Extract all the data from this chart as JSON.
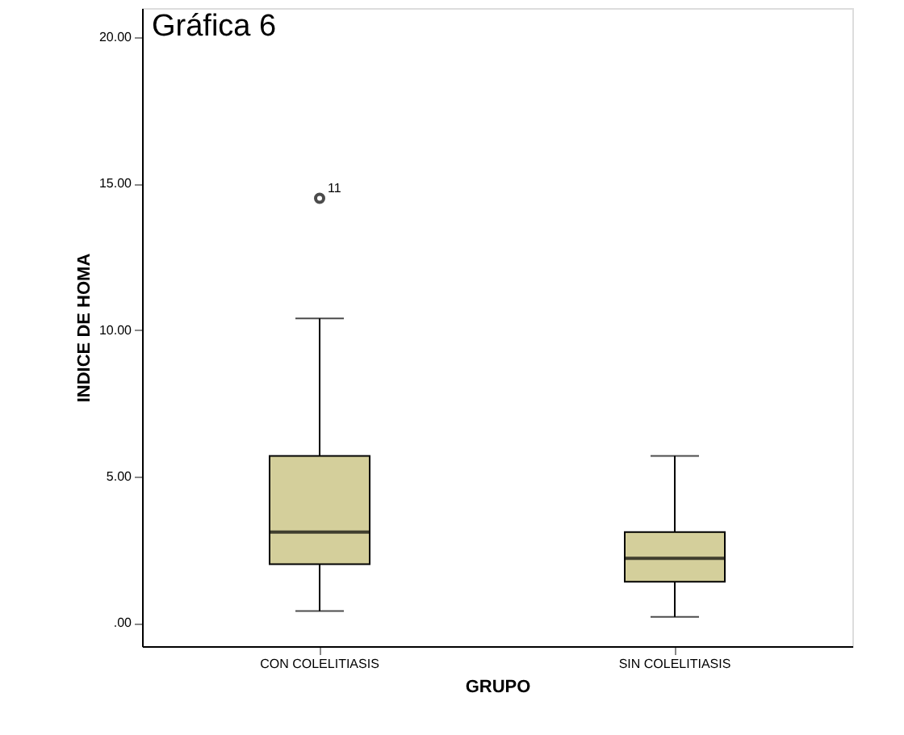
{
  "chart_data": {
    "type": "box",
    "title": "Gráfica 6",
    "xlabel": "GRUPO",
    "ylabel": "INDICE DE HOMA",
    "categories": [
      "CON COLELITIASIS",
      "SIN COLELITIASIS"
    ],
    "boxes": [
      {
        "low": 0.4,
        "q1": 2.0,
        "median": 3.1,
        "q3": 5.7,
        "high": 10.4,
        "outliers": [
          14.5
        ]
      },
      {
        "low": 0.2,
        "q1": 1.4,
        "median": 2.2,
        "q3": 3.1,
        "high": 5.7
      }
    ],
    "color": "#d4cf9b",
    "ylim": [
      -0.8,
      21
    ],
    "yticks": [
      {
        "value": 0,
        "label": ".00"
      },
      {
        "value": 5,
        "label": "5.00"
      },
      {
        "value": 10,
        "label": "10.00"
      },
      {
        "value": 15,
        "label": "15.00"
      },
      {
        "value": 20,
        "label": "20.00"
      }
    ],
    "annotations": [
      "11"
    ],
    "grid": false
  }
}
